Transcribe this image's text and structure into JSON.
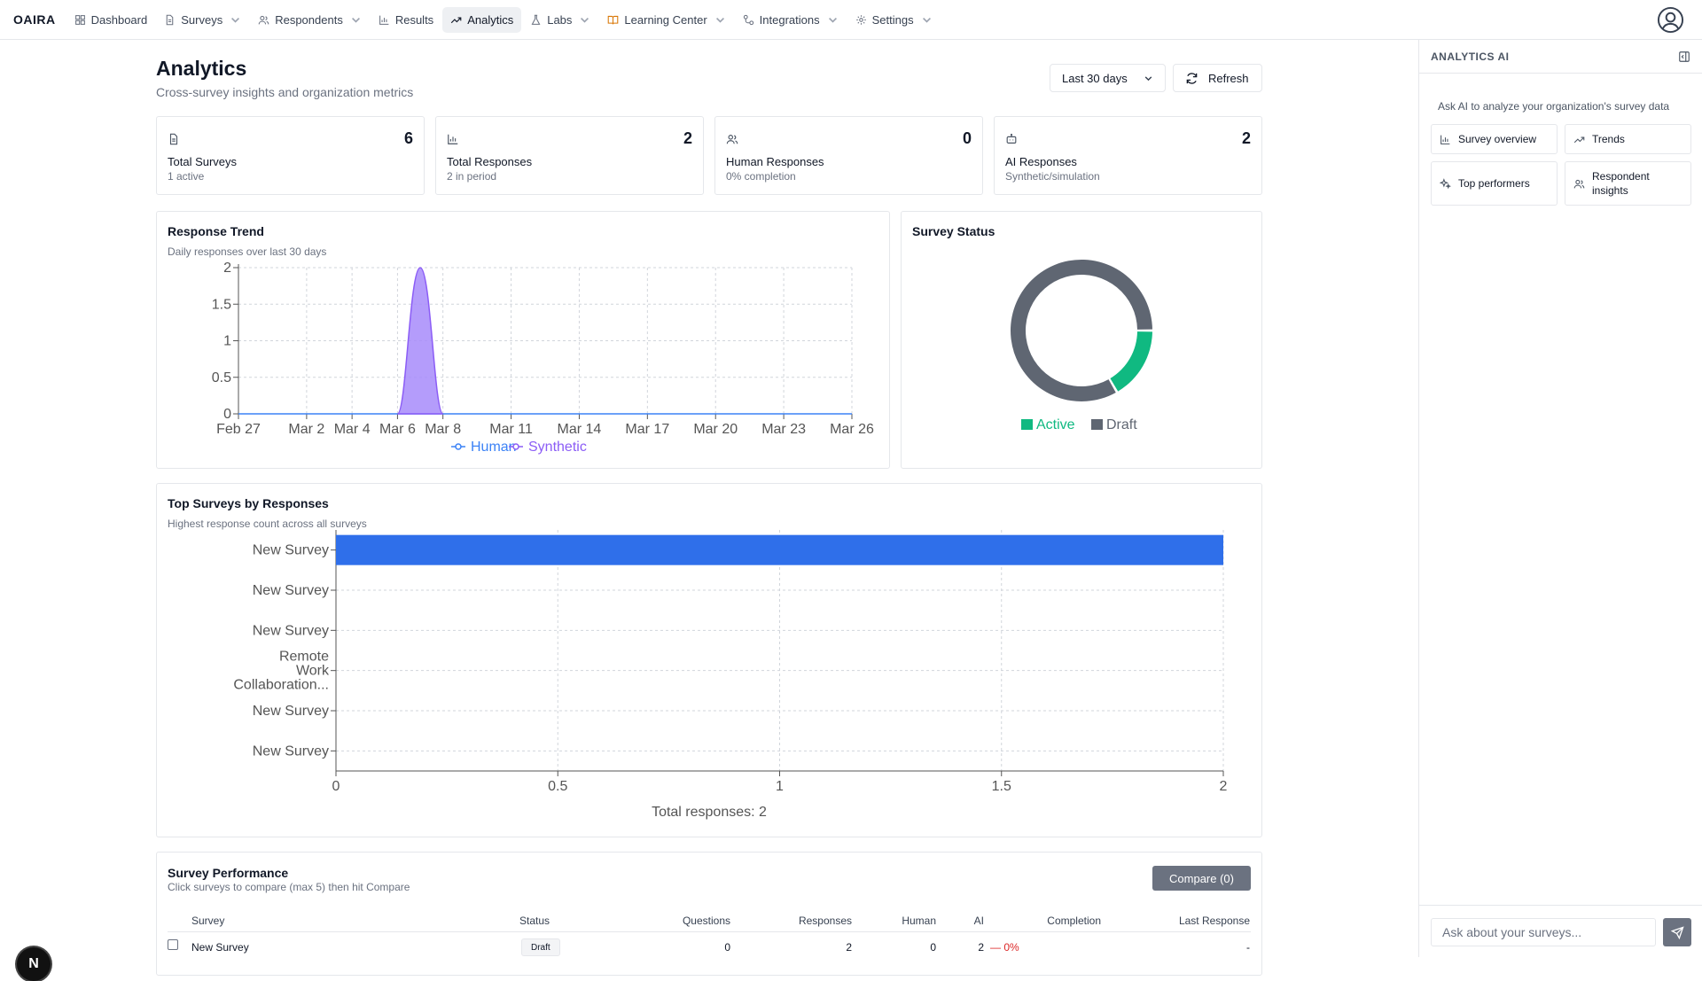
{
  "nav": {
    "brand": "OAIRA",
    "items": [
      {
        "label": "Dashboard",
        "icon": "grid-icon",
        "dropdown": false,
        "active": false
      },
      {
        "label": "Surveys",
        "icon": "document-icon",
        "dropdown": true,
        "active": false
      },
      {
        "label": "Respondents",
        "icon": "users-icon",
        "dropdown": true,
        "active": false
      },
      {
        "label": "Results",
        "icon": "bar-chart-icon",
        "dropdown": false,
        "active": false
      },
      {
        "label": "Analytics",
        "icon": "trending-up-icon",
        "dropdown": false,
        "active": true
      },
      {
        "label": "Labs",
        "icon": "flask-icon",
        "dropdown": true,
        "active": false
      },
      {
        "label": "Learning Center",
        "icon": "book-icon",
        "dropdown": true,
        "active": false
      },
      {
        "label": "Integrations",
        "icon": "link-icon",
        "dropdown": true,
        "active": false
      },
      {
        "label": "Settings",
        "icon": "gear-icon",
        "dropdown": true,
        "active": false
      }
    ]
  },
  "header": {
    "title": "Analytics",
    "subtitle": "Cross-survey insights and organization metrics",
    "range": "Last 30 days",
    "refresh": "Refresh"
  },
  "stats": [
    {
      "value": "6",
      "label": "Total Surveys",
      "sub": "1 active",
      "icon": "document-icon"
    },
    {
      "value": "2",
      "label": "Total Responses",
      "sub": "2 in period",
      "icon": "bar-chart-icon"
    },
    {
      "value": "0",
      "label": "Human Responses",
      "sub": "0% completion",
      "icon": "users-icon"
    },
    {
      "value": "2",
      "label": "AI Responses",
      "sub": "Synthetic/simulation",
      "icon": "bot-icon"
    }
  ],
  "trend": {
    "title": "Response Trend",
    "subtitle": "Daily responses over last 30 days"
  },
  "status": {
    "title": "Survey Status"
  },
  "top_surveys": {
    "title": "Top Surveys by Responses",
    "subtitle": "Highest response count across all surveys",
    "footer": "Total responses: 2"
  },
  "chart_data": [
    {
      "type": "area",
      "x": [
        "Feb 27",
        "Mar 2",
        "Mar 4",
        "Mar 6",
        "Mar 8",
        "Mar 11",
        "Mar 14",
        "Mar 17",
        "Mar 20",
        "Mar 23",
        "Mar 26"
      ],
      "series": [
        {
          "name": "Human",
          "values": [
            0,
            0,
            0,
            0,
            0,
            0,
            0,
            0,
            0,
            0,
            0
          ],
          "color": "#3b82f6"
        },
        {
          "name": "Synthetic",
          "points": [
            {
              "x": "Mar 6",
              "y": 0
            },
            {
              "x": "Mar 7",
              "y": 2
            },
            {
              "x": "Mar 8",
              "y": 0
            }
          ],
          "color": "#8b5cf6"
        }
      ],
      "yticks": [
        "0",
        "0.5",
        "1",
        "1.5",
        "2"
      ],
      "ylim": [
        0,
        2
      ],
      "grid": true,
      "legend": "bottom"
    },
    {
      "type": "pie",
      "labels": [
        "Active",
        "Draft"
      ],
      "values": [
        1,
        5
      ],
      "colors": [
        "#10b981",
        "#5f6672"
      ],
      "legend": "bottom"
    },
    {
      "type": "bar",
      "orientation": "horizontal",
      "categories": [
        "New Survey",
        "New Survey",
        "New Survey",
        "Remote Work Collaboration...",
        "New Survey",
        "New Survey"
      ],
      "category_lines": [
        [
          "New Survey"
        ],
        [
          "New Survey"
        ],
        [
          "New Survey"
        ],
        [
          "Remote",
          "Work",
          "Collaboration..."
        ],
        [
          "New Survey"
        ],
        [
          "New Survey"
        ]
      ],
      "values": [
        2,
        0,
        0,
        0,
        0,
        0
      ],
      "xticks": [
        "0",
        "0.5",
        "1",
        "1.5",
        "2"
      ],
      "xlim": [
        0,
        2
      ],
      "color": "#2f6fea",
      "grid": true
    }
  ],
  "performance": {
    "title": "Survey Performance",
    "subtitle": "Click surveys to compare (max 5) then hit Compare",
    "compare": "Compare (0)",
    "columns": [
      "Survey",
      "Status",
      "Questions",
      "Responses",
      "Human",
      "AI",
      "Completion",
      "Last Response"
    ],
    "rows": [
      {
        "survey": "New Survey",
        "status": "Draft",
        "questions": "0",
        "responses": "2",
        "human": "0",
        "ai": "2",
        "completion": "— 0%",
        "last": "-"
      }
    ]
  },
  "ai_panel": {
    "title": "ANALYTICS AI",
    "intro": "Ask AI to analyze your organization's survey data",
    "buttons": [
      {
        "label": "Survey overview",
        "icon": "bar-chart-icon"
      },
      {
        "label": "Trends",
        "icon": "trending-up-icon"
      },
      {
        "label": "Top performers",
        "icon": "sparkles-icon"
      },
      {
        "label": "Respondent insights",
        "icon": "users-icon"
      }
    ],
    "placeholder": "Ask about your surveys...",
    "send_icon": "send-icon"
  },
  "corner_badge": "N"
}
